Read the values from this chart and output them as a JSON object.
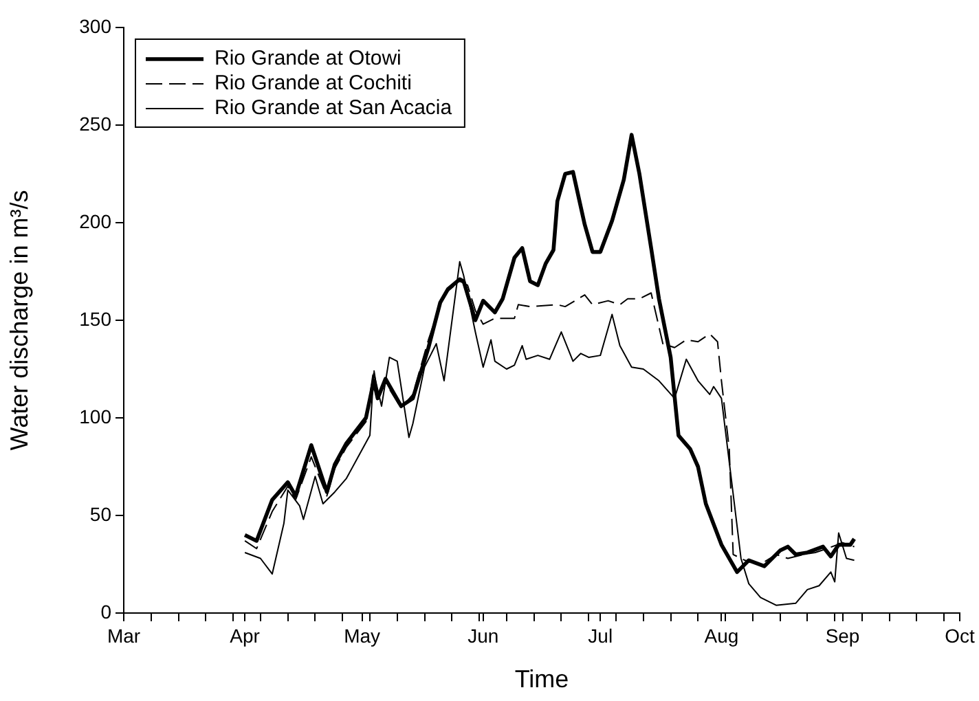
{
  "chart_data": {
    "type": "line",
    "xlabel": "Time",
    "ylabel": "Water discharge in m³/s",
    "xlim": [
      "--03-01",
      "--10-01"
    ],
    "xticks": [
      {
        "value": "--03-01",
        "label": "Mar"
      },
      {
        "value": "--04-01",
        "label": "Apr"
      },
      {
        "value": "--05-01",
        "label": "May"
      },
      {
        "value": "--06-01",
        "label": "Jun"
      },
      {
        "value": "--07-01",
        "label": "Jul"
      },
      {
        "value": "--08-01",
        "label": "Aug"
      },
      {
        "value": "--09-01",
        "label": "Sep"
      },
      {
        "value": "--10-01",
        "label": "Oct"
      },
      {
        "value": "--03-08",
        "label": null
      },
      {
        "value": "--03-15",
        "label": null
      },
      {
        "value": "--03-22",
        "label": null
      },
      {
        "value": "--03-29",
        "label": null
      },
      {
        "value": "--04-05",
        "label": null
      },
      {
        "value": "--04-12",
        "label": null
      },
      {
        "value": "--04-19",
        "label": null
      },
      {
        "value": "--04-26",
        "label": null
      },
      {
        "value": "--05-03",
        "label": null
      },
      {
        "value": "--05-10",
        "label": null
      },
      {
        "value": "--05-17",
        "label": null
      },
      {
        "value": "--05-24",
        "label": null
      },
      {
        "value": "--05-31",
        "label": null
      },
      {
        "value": "--06-07",
        "label": null
      },
      {
        "value": "--06-14",
        "label": null
      },
      {
        "value": "--06-21",
        "label": null
      },
      {
        "value": "--06-28",
        "label": null
      },
      {
        "value": "--07-05",
        "label": null
      },
      {
        "value": "--07-12",
        "label": null
      },
      {
        "value": "--07-19",
        "label": null
      },
      {
        "value": "--07-26",
        "label": null
      },
      {
        "value": "--08-02",
        "label": null
      },
      {
        "value": "--08-09",
        "label": null
      },
      {
        "value": "--08-16",
        "label": null
      },
      {
        "value": "--08-23",
        "label": null
      },
      {
        "value": "--08-30",
        "label": null
      },
      {
        "value": "--09-06",
        "label": null
      },
      {
        "value": "--09-13",
        "label": null
      },
      {
        "value": "--09-20",
        "label": null
      },
      {
        "value": "--09-27",
        "label": null
      }
    ],
    "ylim": [
      0,
      300
    ],
    "yticks": [
      0,
      50,
      100,
      150,
      200,
      250,
      300
    ],
    "grid": false,
    "legend": "top left",
    "marker": "none",
    "series": [
      {
        "name": "Rio Grande at Otowi",
        "color": "#000000",
        "line_style": "solid",
        "x": [
          "--04-01",
          "--04-04",
          "--04-08",
          "--04-12",
          "--04-14",
          "--04-18",
          "--04-22",
          "--04-24",
          "--04-27",
          "--05-02",
          "--05-04",
          "--05-05",
          "--05-07",
          "--05-11",
          "--05-14",
          "--05-18",
          "--05-21",
          "--05-23",
          "--05-26",
          "--05-27",
          "--05-30",
          "--06-01",
          "--06-04",
          "--06-06",
          "--06-09",
          "--06-11",
          "--06-13",
          "--06-15",
          "--06-17",
          "--06-19",
          "--06-20",
          "--06-22",
          "--06-24",
          "--06-27",
          "--06-29",
          "--07-01",
          "--07-04",
          "--07-07",
          "--07-09",
          "--07-11",
          "--07-14",
          "--07-16",
          "--07-19",
          "--07-21",
          "--07-24",
          "--07-26",
          "--07-28",
          "--08-01",
          "--08-05",
          "--08-08",
          "--08-12",
          "--08-16",
          "--08-18",
          "--08-20",
          "--08-23",
          "--08-27",
          "--08-29",
          "--08-31",
          "--09-03",
          "--09-04"
        ],
        "values": [
          40,
          37,
          58,
          67,
          60,
          86,
          62,
          76,
          87,
          100,
          119,
          110,
          120,
          106,
          110,
          136,
          159,
          166,
          171,
          170,
          150,
          160,
          154,
          161,
          182,
          187,
          170,
          168,
          179,
          186,
          211,
          225,
          226,
          199,
          185,
          185,
          201,
          222,
          245,
          225,
          187,
          161,
          131,
          91,
          84,
          75,
          56,
          35,
          21,
          27,
          24,
          32,
          34,
          30,
          31,
          34,
          29,
          35,
          35,
          38
        ]
      },
      {
        "name": "Rio Grande at Cochiti",
        "color": "#000000",
        "line_style": "dashed",
        "x": [
          "--04-01",
          "--04-04",
          "--04-08",
          "--04-12",
          "--04-14",
          "--04-18",
          "--04-22",
          "--04-24",
          "--04-27",
          "--05-02",
          "--05-04",
          "--05-05",
          "--05-07",
          "--05-11",
          "--05-14",
          "--05-18",
          "--05-21",
          "--05-23",
          "--05-26",
          "--05-28",
          "--05-30",
          "--06-01",
          "--06-04",
          "--06-09",
          "--06-10",
          "--06-13",
          "--06-20",
          "--06-22",
          "--06-27",
          "--06-29",
          "--07-03",
          "--07-06",
          "--07-08",
          "--07-11",
          "--07-14",
          "--07-17",
          "--07-20",
          "--07-23",
          "--07-26",
          "--07-29",
          "--07-31",
          "--08-01",
          "--08-03",
          "--08-04",
          "--08-07",
          "--08-11",
          "--08-15",
          "--08-18",
          "--08-22",
          "--08-25",
          "--08-28",
          "--09-01",
          "--09-04"
        ],
        "values": [
          37,
          33,
          52,
          65,
          58,
          80,
          60,
          74,
          85,
          98,
          125,
          112,
          118,
          105,
          112,
          140,
          158,
          165,
          170,
          168,
          155,
          148,
          151,
          151,
          158,
          157,
          158,
          157,
          163,
          158,
          160,
          158,
          161,
          161,
          164,
          138,
          136,
          140,
          139,
          143,
          139,
          119,
          84,
          30,
          27,
          25,
          30,
          28,
          30,
          31,
          33,
          36,
          34
        ]
      },
      {
        "name": "Rio Grande at San Acacia",
        "color": "#000000",
        "line_style": "solid",
        "x": [
          "--04-01",
          "--04-05",
          "--04-08",
          "--04-11",
          "--04-12",
          "--04-15",
          "--04-16",
          "--04-19",
          "--04-21",
          "--04-24",
          "--04-27",
          "--04-30",
          "--05-03",
          "--05-04",
          "--05-06",
          "--05-08",
          "--05-10",
          "--05-13",
          "--05-14",
          "--05-17",
          "--05-20",
          "--05-22",
          "--05-26",
          "--05-27",
          "--05-30",
          "--06-01",
          "--06-03",
          "--06-04",
          "--06-07",
          "--06-09",
          "--06-11",
          "--06-12",
          "--06-15",
          "--06-18",
          "--06-21",
          "--06-24",
          "--06-26",
          "--06-28",
          "--07-01",
          "--07-04",
          "--07-06",
          "--07-09",
          "--07-12",
          "--07-16",
          "--07-20",
          "--07-23",
          "--07-26",
          "--07-29",
          "--07-30",
          "--08-01",
          "--08-04",
          "--08-06",
          "--08-08",
          "--08-11",
          "--08-15",
          "--08-20",
          "--08-23",
          "--08-26",
          "--08-29",
          "--08-30",
          "--08-31",
          "--09-02",
          "--09-04"
        ],
        "values": [
          31,
          28,
          20,
          46,
          63,
          55,
          48,
          70,
          56,
          62,
          69,
          80,
          91,
          123,
          106,
          131,
          129,
          90,
          97,
          126,
          138,
          119,
          180,
          173,
          144,
          126,
          140,
          129,
          125,
          127,
          137,
          130,
          132,
          130,
          144,
          129,
          133,
          131,
          132,
          153,
          137,
          126,
          125,
          119,
          110,
          130,
          119,
          112,
          116,
          110,
          61,
          28,
          15,
          8,
          4,
          5,
          12,
          14,
          21,
          16,
          41,
          28,
          27
        ]
      }
    ]
  }
}
